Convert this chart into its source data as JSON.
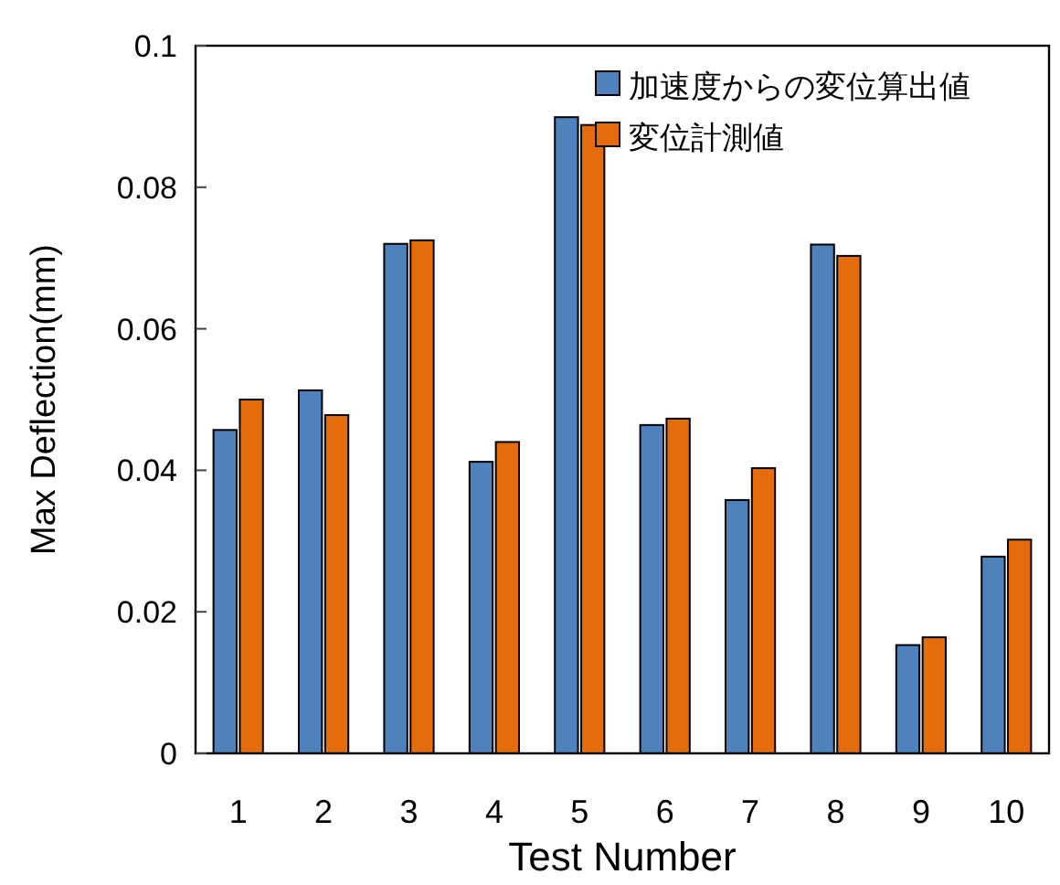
{
  "chart_data": {
    "type": "bar",
    "xlabel": "Test Number",
    "ylabel": "Max Deflection(mm)",
    "categories": [
      "1",
      "2",
      "3",
      "4",
      "5",
      "6",
      "7",
      "8",
      "9",
      "10"
    ],
    "series": [
      {
        "name": "加速度からの変位算出値",
        "color": "#4f81bd",
        "values": [
          0.0457,
          0.0513,
          0.072,
          0.0412,
          0.0899,
          0.0464,
          0.0358,
          0.0719,
          0.0153,
          0.0278
        ]
      },
      {
        "name": "変位計測値",
        "color": "#e46c0a",
        "values": [
          0.05,
          0.0478,
          0.0725,
          0.044,
          0.0888,
          0.0473,
          0.0403,
          0.0703,
          0.0164,
          0.0302
        ]
      }
    ],
    "ylim": [
      0,
      0.1
    ],
    "yticks": [
      0,
      0.02,
      0.04,
      0.06,
      0.08,
      0.1
    ],
    "grid": false,
    "legend": "top right"
  }
}
